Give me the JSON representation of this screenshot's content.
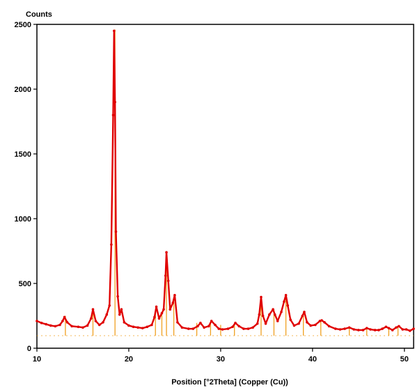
{
  "chart_data": {
    "type": "line",
    "ylabel": "Counts",
    "xlabel": "Position [°2Theta] (Copper (Cu))",
    "xlim": [
      10,
      51
    ],
    "ylim": [
      0,
      2500
    ],
    "x_ticks": [
      "10",
      "20",
      "30",
      "40",
      "50"
    ],
    "y_ticks": [
      "0",
      "500",
      "1000",
      "1500",
      "2000",
      "2500"
    ],
    "grid": false,
    "series": [
      {
        "style": "measured profile (red dots)",
        "color": "#e00000",
        "x": [
          10,
          10.5,
          11,
          11.5,
          12,
          12.5,
          12.8,
          13,
          13.3,
          13.8,
          14.5,
          15,
          15.5,
          15.9,
          16.1,
          16.4,
          16.8,
          17.2,
          17.6,
          17.9,
          18.1,
          18.3,
          18.4,
          18.5,
          18.6,
          18.8,
          19,
          19.2,
          19.5,
          20,
          20.5,
          21,
          21.5,
          22,
          22.5,
          22.8,
          23,
          23.3,
          23.6,
          23.8,
          24,
          24.1,
          24.3,
          24.5,
          24.8,
          25,
          25.3,
          25.8,
          26.5,
          27,
          27.5,
          27.8,
          28.2,
          28.7,
          29,
          29.4,
          29.8,
          30.2,
          30.8,
          31.3,
          31.6,
          32,
          32.5,
          33,
          33.5,
          34,
          34.2,
          34.4,
          34.6,
          34.9,
          35.3,
          35.7,
          35.9,
          36.2,
          36.6,
          36.9,
          37.1,
          37.3,
          37.6,
          38,
          38.5,
          38.9,
          39.1,
          39.4,
          39.8,
          40.3,
          40.8,
          41,
          41.3,
          41.8,
          42.5,
          43,
          43.5,
          44,
          44.5,
          45,
          45.5,
          45.9,
          46.3,
          46.8,
          47.2,
          47.6,
          48,
          48.3,
          48.7,
          49.1,
          49.4,
          49.8,
          50.2,
          50.6,
          51
        ],
        "y": [
          210,
          195,
          185,
          175,
          170,
          180,
          210,
          240,
          200,
          170,
          165,
          160,
          175,
          230,
          300,
          210,
          180,
          200,
          260,
          330,
          800,
          1800,
          2450,
          1900,
          900,
          400,
          260,
          300,
          200,
          175,
          165,
          160,
          155,
          165,
          180,
          240,
          320,
          230,
          270,
          300,
          560,
          740,
          520,
          300,
          350,
          410,
          200,
          160,
          150,
          150,
          170,
          195,
          160,
          170,
          210,
          180,
          150,
          145,
          150,
          165,
          195,
          170,
          150,
          150,
          160,
          190,
          260,
          395,
          250,
          190,
          260,
          300,
          260,
          210,
          280,
          360,
          410,
          330,
          220,
          175,
          190,
          250,
          280,
          200,
          175,
          180,
          210,
          215,
          200,
          170,
          150,
          145,
          150,
          160,
          145,
          140,
          140,
          155,
          145,
          140,
          140,
          150,
          165,
          155,
          140,
          160,
          170,
          145,
          145,
          135,
          150
        ]
      },
      {
        "style": "reference sticks (orange)",
        "color": "#f0a020",
        "peaks_x": [
          13.1,
          16.1,
          18.5,
          22.9,
          23.6,
          24.1,
          24.9,
          27.4,
          28.9,
          30,
          31.5,
          34.4,
          35.8,
          37.1,
          39,
          40.9,
          44,
          45.9,
          48.3,
          49.3
        ],
        "peaks_y": [
          250,
          300,
          2460,
          300,
          280,
          740,
          400,
          195,
          205,
          180,
          190,
          400,
          300,
          410,
          280,
          210,
          160,
          150,
          160,
          165
        ]
      }
    ]
  }
}
